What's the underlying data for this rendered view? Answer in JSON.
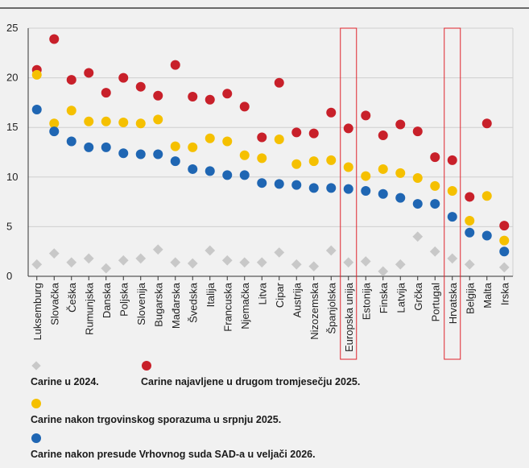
{
  "chart_data": {
    "type": "scatter",
    "categories": [
      "Luksemburg",
      "Slovačka",
      "Češka",
      "Rumunjska",
      "Danska",
      "Poljska",
      "Slovenija",
      "Bugarska",
      "Mađarska",
      "Švedska",
      "Italija",
      "Francuska",
      "Njemačka",
      "Litva",
      "Cipar",
      "Austrija",
      "Nizozemska",
      "Španjolska",
      "Europska unija",
      "Estonija",
      "Finska",
      "Latvija",
      "Grčka",
      "Portugal",
      "Hrvatska",
      "Belgija",
      "Malta",
      "Irska"
    ],
    "highlighted": [
      "Europska unija",
      "Hrvatska"
    ],
    "ylim": [
      0,
      25
    ],
    "yticks": [
      0,
      5,
      10,
      15,
      20,
      25
    ],
    "grid": true,
    "series": [
      {
        "name": "Carine u 2024.",
        "marker": "diamond",
        "color": "#c8c8c8",
        "values": [
          1.2,
          2.3,
          1.4,
          1.8,
          0.8,
          1.6,
          1.8,
          2.7,
          1.4,
          1.3,
          2.6,
          1.6,
          1.4,
          1.4,
          2.4,
          1.2,
          1.0,
          2.6,
          1.4,
          1.5,
          0.5,
          1.2,
          4.0,
          2.5,
          1.8,
          1.2,
          null,
          0.9
        ]
      },
      {
        "name": "Carine najavljene u drugom tromjesečju 2025.",
        "marker": "circle",
        "color": "#c8202a",
        "values": [
          20.8,
          23.9,
          19.8,
          20.5,
          18.5,
          20.0,
          19.1,
          18.2,
          21.3,
          18.1,
          17.8,
          18.4,
          17.1,
          14.0,
          19.5,
          14.5,
          14.4,
          16.5,
          14.9,
          16.2,
          14.2,
          15.3,
          14.6,
          12.0,
          11.7,
          8.0,
          15.4,
          5.1
        ]
      },
      {
        "name": "Carine nakon trgovinskog sporazuma u srpnju 2025.",
        "marker": "circle",
        "color": "#f5c000",
        "values": [
          20.3,
          15.4,
          16.7,
          15.6,
          15.6,
          15.5,
          15.4,
          15.8,
          13.1,
          13.0,
          13.9,
          13.6,
          12.2,
          11.9,
          13.8,
          11.3,
          11.6,
          11.7,
          11.0,
          10.1,
          10.8,
          10.4,
          9.9,
          9.1,
          8.6,
          5.6,
          8.1,
          3.6
        ]
      },
      {
        "name": "Carine nakon presude Vrhovnog suda SAD-a u veljači 2026.",
        "marker": "circle",
        "color": "#1f66b3",
        "values": [
          16.8,
          14.6,
          13.6,
          13.0,
          13.0,
          12.4,
          12.3,
          12.3,
          11.6,
          10.8,
          10.6,
          10.2,
          10.2,
          9.4,
          9.3,
          9.2,
          8.9,
          8.9,
          8.8,
          8.6,
          8.3,
          7.9,
          7.3,
          7.3,
          6.0,
          4.4,
          4.1,
          2.5
        ]
      }
    ]
  },
  "colors": {
    "background": "#f1f1f1",
    "grid": "#d0d0d0",
    "axis": "#333333",
    "highlight_box": "#e0242c"
  }
}
